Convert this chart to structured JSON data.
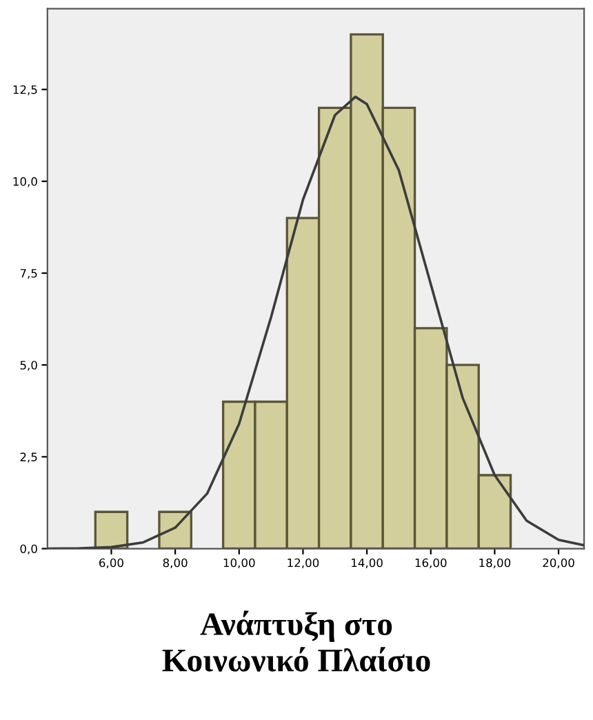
{
  "chart_data": {
    "type": "histogram",
    "title": "Ανάπτυξη στο\nΚοινωνικό Πλαίσιο",
    "bins": [
      5.5,
      6.5,
      7.5,
      8.5,
      9.5,
      10.5,
      11.5,
      12.5,
      13.5,
      14.5,
      15.5,
      16.5,
      17.5,
      18.5
    ],
    "values": [
      1,
      0,
      1,
      0,
      4,
      4,
      9,
      12,
      14,
      12,
      6,
      5,
      2
    ],
    "color": "#d3cf9d",
    "series": [
      {
        "type": "line",
        "color": "#3c3c3c",
        "x": [
          4,
          5,
          6,
          7,
          8,
          9,
          10,
          11,
          12,
          13,
          13.64,
          14,
          15,
          16,
          17,
          18,
          19,
          20,
          20.8
        ],
        "values": [
          0,
          0.01,
          0.04,
          0.17,
          0.57,
          1.5,
          3.4,
          6.3,
          9.5,
          11.8,
          12.3,
          12.1,
          10.3,
          7.2,
          4.1,
          2.0,
          0.76,
          0.24,
          0.09
        ]
      }
    ],
    "xlim": [
      4,
      20.8
    ],
    "ylim": [
      0,
      14.7
    ],
    "xticks": [
      {
        "value": 6,
        "label": "6,00"
      },
      {
        "value": 8,
        "label": "8,00"
      },
      {
        "value": 10,
        "label": "10,00"
      },
      {
        "value": 12,
        "label": "12,00"
      },
      {
        "value": 14,
        "label": "14,00"
      },
      {
        "value": 16,
        "label": "16,00"
      },
      {
        "value": 18,
        "label": "18,00"
      },
      {
        "value": 20,
        "label": "20,00"
      }
    ],
    "yticks": [
      {
        "value": 0,
        "label": "0,0"
      },
      {
        "value": 2.5,
        "label": "2,5"
      },
      {
        "value": 5,
        "label": "5,0"
      },
      {
        "value": 7.5,
        "label": "7,5"
      },
      {
        "value": 10,
        "label": "10,0"
      },
      {
        "value": 12.5,
        "label": "12,5"
      }
    ]
  }
}
